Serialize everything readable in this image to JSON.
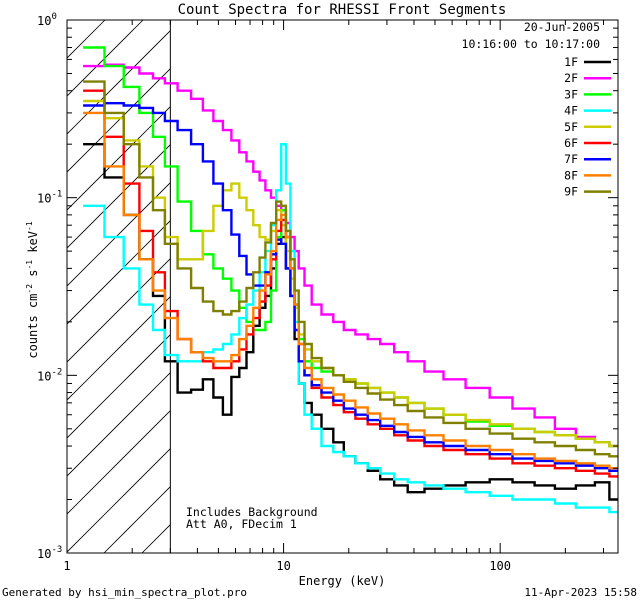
{
  "chart_data": {
    "type": "line",
    "title": "Count Spectra for RHESSI Front Segments",
    "xlabel": "Energy (keV)",
    "ylabel_parts": {
      "a": "counts cm",
      "b": "-2",
      "c": " s",
      "d": "-1",
      "e": " keV",
      "f": "-1"
    },
    "x_scale": "log",
    "y_scale": "log",
    "xlim": [
      1,
      350
    ],
    "ylim": [
      0.001,
      1
    ],
    "x_ticks": [
      {
        "value": 1,
        "label": "1"
      },
      {
        "value": 10,
        "label": "10"
      },
      {
        "value": 100,
        "label": "100"
      }
    ],
    "y_ticks": [
      {
        "value": 1,
        "base": "10",
        "exp": "0"
      },
      {
        "value": 0.1,
        "base": "10",
        "exp": "-1"
      },
      {
        "value": 0.01,
        "base": "10",
        "exp": "-2"
      },
      {
        "value": 0.001,
        "base": "10",
        "exp": "-3"
      }
    ],
    "hatched_region_x": [
      1,
      3
    ],
    "date": "20-Jun-2005",
    "time_range": "10:16:00 to 10:17:00",
    "annotations": [
      "Includes Background",
      "Att A0, FDecim 1"
    ],
    "energies": [
      1.33,
      1.67,
      2.0,
      2.33,
      2.67,
      3.0,
      3.5,
      4.0,
      4.5,
      5.0,
      5.5,
      6.0,
      6.5,
      7.0,
      7.5,
      8.0,
      8.5,
      9.0,
      9.5,
      10.0,
      10.5,
      11.0,
      11.5,
      12.0,
      13.0,
      14.0,
      16.0,
      18.0,
      20.0,
      23.0,
      26.0,
      30.0,
      35.0,
      40.0,
      50.0,
      60.0,
      80.0,
      100.0,
      130.0,
      160.0,
      200.0,
      250.0,
      300.0,
      340.0
    ],
    "series": [
      {
        "name": "1F",
        "color": "#000000",
        "values": [
          0.2,
          0.13,
          0.08,
          0.045,
          0.028,
          0.012,
          0.008,
          0.0083,
          0.0095,
          0.0075,
          0.006,
          0.0098,
          0.011,
          0.0135,
          0.019,
          0.024,
          0.028,
          0.04,
          0.055,
          0.06,
          0.04,
          0.028,
          0.016,
          0.009,
          0.007,
          0.006,
          0.005,
          0.0042,
          0.0035,
          0.0032,
          0.0029,
          0.0026,
          0.0024,
          0.0022,
          0.0023,
          0.0024,
          0.0025,
          0.0026,
          0.0025,
          0.0024,
          0.0023,
          0.0024,
          0.0025,
          0.002
        ]
      },
      {
        "name": "2F",
        "color": "#ff00ff",
        "values": [
          0.55,
          0.56,
          0.54,
          0.5,
          0.47,
          0.44,
          0.4,
          0.36,
          0.31,
          0.27,
          0.24,
          0.21,
          0.18,
          0.16,
          0.14,
          0.125,
          0.11,
          0.1,
          0.09,
          0.085,
          0.072,
          0.06,
          0.05,
          0.04,
          0.032,
          0.025,
          0.022,
          0.02,
          0.018,
          0.017,
          0.016,
          0.015,
          0.0135,
          0.012,
          0.0105,
          0.0095,
          0.0085,
          0.0075,
          0.0065,
          0.0058,
          0.005,
          0.0045,
          0.0042,
          0.004
        ]
      },
      {
        "name": "3F",
        "color": "#00ff00",
        "values": [
          0.7,
          0.55,
          0.42,
          0.3,
          0.22,
          0.15,
          0.095,
          0.065,
          0.048,
          0.04,
          0.035,
          0.03,
          0.024,
          0.02,
          0.018,
          0.018,
          0.02,
          0.03,
          0.06,
          0.085,
          0.06,
          0.04,
          0.025,
          0.016,
          0.012,
          0.011,
          0.0105,
          0.01,
          0.0095,
          0.009,
          0.0085,
          0.008,
          0.0075,
          0.007,
          0.0065,
          0.006,
          0.0055,
          0.0052,
          0.005,
          0.0048,
          0.0046,
          0.0044,
          0.0042,
          0.004
        ]
      },
      {
        "name": "4F",
        "color": "#00ffff",
        "values": [
          0.09,
          0.06,
          0.04,
          0.025,
          0.018,
          0.013,
          0.012,
          0.012,
          0.0135,
          0.014,
          0.015,
          0.017,
          0.021,
          0.025,
          0.03,
          0.038,
          0.05,
          0.07,
          0.11,
          0.2,
          0.12,
          0.05,
          0.02,
          0.009,
          0.006,
          0.005,
          0.004,
          0.0037,
          0.0035,
          0.0032,
          0.003,
          0.0028,
          0.0026,
          0.0025,
          0.0024,
          0.0023,
          0.0022,
          0.0021,
          0.002,
          0.002,
          0.0019,
          0.0018,
          0.0018,
          0.0017
        ]
      },
      {
        "name": "5F",
        "color": "#cccc00",
        "values": [
          0.35,
          0.28,
          0.21,
          0.15,
          0.1,
          0.06,
          0.045,
          0.045,
          0.065,
          0.09,
          0.11,
          0.12,
          0.1,
          0.085,
          0.07,
          0.06,
          0.058,
          0.065,
          0.085,
          0.07,
          0.05,
          0.035,
          0.024,
          0.017,
          0.014,
          0.012,
          0.011,
          0.01,
          0.0095,
          0.009,
          0.0085,
          0.008,
          0.0075,
          0.007,
          0.0065,
          0.006,
          0.0056,
          0.0053,
          0.005,
          0.0048,
          0.0046,
          0.0044,
          0.0042,
          0.004
        ]
      },
      {
        "name": "6F",
        "color": "#ff0000",
        "values": [
          0.4,
          0.22,
          0.12,
          0.065,
          0.038,
          0.023,
          0.016,
          0.0135,
          0.012,
          0.011,
          0.011,
          0.012,
          0.014,
          0.017,
          0.021,
          0.026,
          0.032,
          0.045,
          0.065,
          0.075,
          0.06,
          0.04,
          0.025,
          0.015,
          0.01,
          0.0085,
          0.0075,
          0.0068,
          0.0062,
          0.0057,
          0.0053,
          0.005,
          0.0046,
          0.0043,
          0.004,
          0.0038,
          0.0036,
          0.0034,
          0.0032,
          0.0031,
          0.003,
          0.0029,
          0.0028,
          0.0027
        ]
      },
      {
        "name": "7F",
        "color": "#0000ff",
        "values": [
          0.33,
          0.34,
          0.33,
          0.32,
          0.3,
          0.27,
          0.24,
          0.2,
          0.16,
          0.12,
          0.085,
          0.062,
          0.047,
          0.037,
          0.032,
          0.032,
          0.038,
          0.048,
          0.058,
          0.055,
          0.04,
          0.028,
          0.018,
          0.012,
          0.01,
          0.0088,
          0.008,
          0.0072,
          0.0065,
          0.006,
          0.0056,
          0.0052,
          0.0048,
          0.0045,
          0.0042,
          0.004,
          0.0038,
          0.0036,
          0.0034,
          0.0033,
          0.0032,
          0.0031,
          0.003,
          0.0029
        ]
      },
      {
        "name": "8F",
        "color": "#ff8000",
        "values": [
          0.3,
          0.15,
          0.08,
          0.045,
          0.03,
          0.021,
          0.016,
          0.0135,
          0.0125,
          0.012,
          0.012,
          0.013,
          0.016,
          0.019,
          0.024,
          0.03,
          0.037,
          0.05,
          0.075,
          0.08,
          0.06,
          0.04,
          0.025,
          0.015,
          0.011,
          0.0095,
          0.0085,
          0.0078,
          0.0072,
          0.0066,
          0.0061,
          0.0057,
          0.0053,
          0.0049,
          0.0046,
          0.0043,
          0.004,
          0.0038,
          0.0036,
          0.0034,
          0.0033,
          0.0032,
          0.0031,
          0.003
        ]
      },
      {
        "name": "9F",
        "color": "#808000",
        "values": [
          0.45,
          0.3,
          0.2,
          0.13,
          0.085,
          0.055,
          0.04,
          0.031,
          0.026,
          0.023,
          0.022,
          0.023,
          0.026,
          0.031,
          0.038,
          0.046,
          0.056,
          0.072,
          0.095,
          0.09,
          0.065,
          0.045,
          0.03,
          0.02,
          0.015,
          0.0125,
          0.011,
          0.01,
          0.0092,
          0.0085,
          0.0079,
          0.0073,
          0.0068,
          0.0063,
          0.0058,
          0.0054,
          0.005,
          0.0047,
          0.0044,
          0.0042,
          0.004,
          0.0038,
          0.0036,
          0.0035
        ]
      }
    ]
  },
  "footer": {
    "left": "Generated by hsi_min_spectra_plot.pro",
    "right": "11-Apr-2023 15:58"
  }
}
